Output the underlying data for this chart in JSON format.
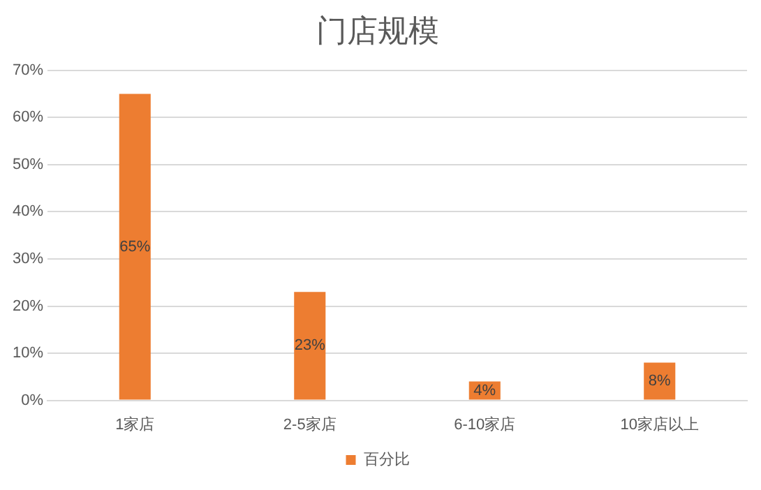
{
  "chart_data": {
    "type": "bar",
    "title": "门店规模",
    "categories": [
      "1家店",
      "2-5家店",
      "6-10家店",
      "10家店以上"
    ],
    "series": [
      {
        "name": "百分比",
        "color": "#ed7d31",
        "values": [
          65,
          23,
          4,
          8
        ],
        "value_labels": [
          "65%",
          "23%",
          "4%",
          "8%"
        ]
      }
    ],
    "ylim": [
      0,
      70
    ],
    "yticks": [
      {
        "value": 0,
        "label": "0%"
      },
      {
        "value": 10,
        "label": "10%"
      },
      {
        "value": 20,
        "label": "20%"
      },
      {
        "value": 30,
        "label": "30%"
      },
      {
        "value": 40,
        "label": "40%"
      },
      {
        "value": 50,
        "label": "50%"
      },
      {
        "value": 60,
        "label": "60%"
      },
      {
        "value": 70,
        "label": "70%"
      }
    ],
    "grid": "y",
    "legend": "bottom"
  }
}
